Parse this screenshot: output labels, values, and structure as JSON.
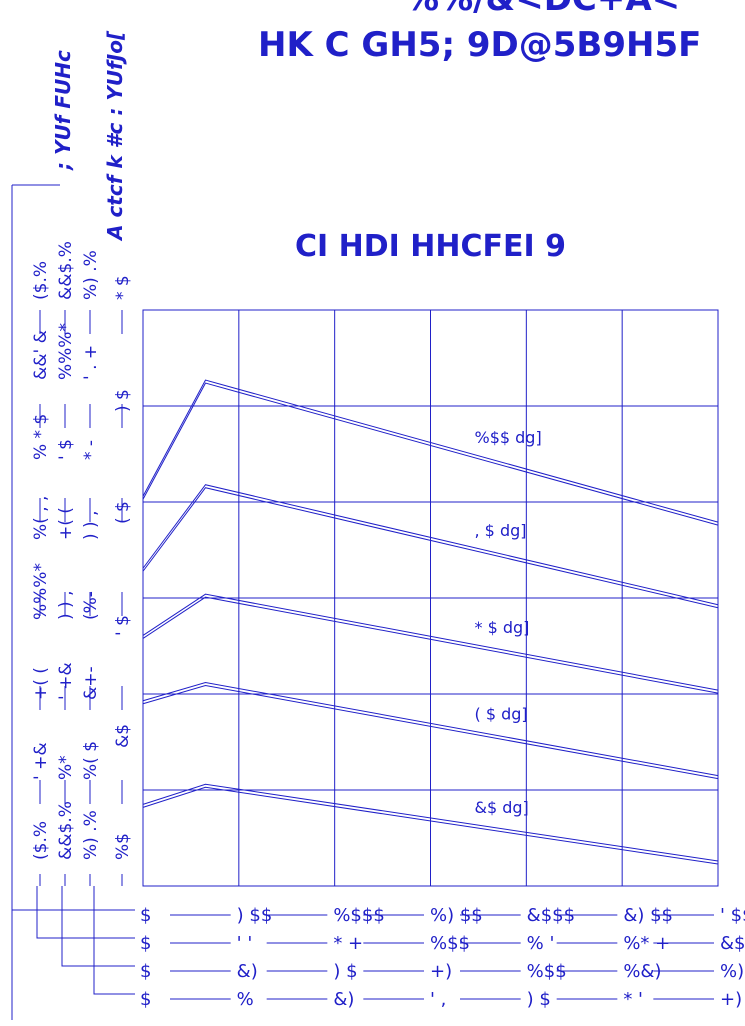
{
  "colors": {
    "ink": "#2020c8",
    "background": "#ffffff"
  },
  "title_lines": [
    "%%/&<DC+A<",
    "HK C GH5; 9D@5B9H5F"
  ],
  "subtitle": "CI HDI HHCFEI 9",
  "left_axes": [
    {
      "label": "($.%",
      "ticks": [
        "($.%",
        "' +&",
        "+( (",
        "%%%*",
        "%( , ,",
        "% * $",
        "&&' &",
        "($.%"
      ]
    },
    {
      "label": "&&$.%",
      "ticks": [
        "&&$.%",
        "%* ",
        "' +&",
        ") ) ,",
        "+( (",
        "' $",
        "%%%*",
        "&&$.%"
      ]
    },
    {
      "label": "%) .%",
      "ticks": [
        "%) .%",
        "%( $",
        "&+-",
        "(%-",
        ") ) ,",
        "* -",
        "' . +",
        "%) .%"
      ]
    },
    {
      "label": "$",
      "ticks": [
        "%$",
        "&$",
        "' $",
        "( $",
        ") $",
        "* $"
      ]
    }
  ],
  "left_axis_title": "A ctcf k #c : YUfJo[",
  "left_axis_title2": "; YUf FUHc",
  "bottom_axes": [
    {
      "ticks": [
        "$",
        ") $$",
        "%$$$",
        "%) $$",
        "&$$$",
        "&) $$",
        "' $$$"
      ]
    },
    {
      "ticks": [
        "$",
        "' '",
        "* +",
        "%$$",
        "% '",
        "%* +",
        "&$$"
      ]
    },
    {
      "ticks": [
        "$",
        "&)",
        ") $",
        "+)",
        "%$$",
        "%&)",
        "%) $"
      ]
    },
    {
      "ticks": [
        "$",
        "%",
        "&)",
        "' ,",
        ") $",
        "* '",
        "+)"
      ]
    }
  ],
  "chart_data": {
    "type": "line",
    "x": [
      0,
      326,
      3000
    ],
    "xlim": [
      0,
      3000
    ],
    "ylim": [
      0,
      6
    ],
    "grid": true,
    "series": [
      {
        "name": "%$$ dg]",
        "values": [
          4.06,
          5.27,
          3.79
        ]
      },
      {
        "name": ", $ dg]",
        "values": [
          3.31,
          4.18,
          2.93
        ]
      },
      {
        "name": "* $ dg]",
        "values": [
          2.61,
          3.04,
          2.04
        ]
      },
      {
        "name": "( $ dg]",
        "values": [
          1.93,
          2.12,
          1.15
        ]
      },
      {
        "name": "&$ dg]",
        "values": [
          0.85,
          1.06,
          0.26
        ]
      }
    ]
  }
}
